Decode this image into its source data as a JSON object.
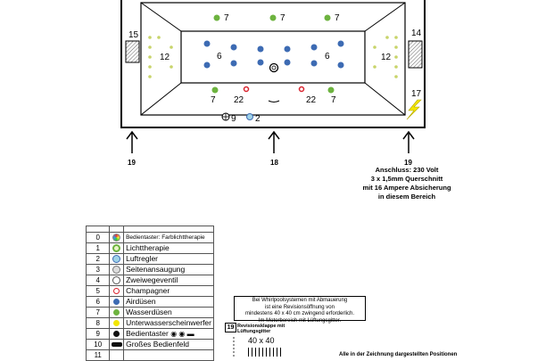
{
  "tub": {
    "labels": {
      "top_left": "7",
      "top_mid": "7",
      "top_right": "7",
      "mid_left": "6",
      "mid_right": "6",
      "side_left": "12",
      "side_right": "12",
      "bottom_left_7": "7",
      "bottom_right_7": "7",
      "bottom_left_22": "22",
      "bottom_right_22": "22",
      "pos_15": "15",
      "pos_14": "14",
      "pos_17": "17",
      "pos_9": "9",
      "pos_2": "2"
    },
    "arrows": {
      "left": "19",
      "middle": "18",
      "right": "19"
    }
  },
  "connection_note": {
    "line1": "Anschluss: 230 Volt",
    "line2": "3 x 1,5mm Querschnitt",
    "line3": "mit 16 Ampere Absicherung",
    "line4": "in diesem Bereich"
  },
  "legend": [
    {
      "num": "0",
      "label": "Bedientaster: Farblichttherapie",
      "icon": "color-therapy-icon"
    },
    {
      "num": "1",
      "label": "Lichttherapie",
      "icon": "light-therapy-icon"
    },
    {
      "num": "2",
      "label": "Luftregler",
      "icon": "air-regulator-icon"
    },
    {
      "num": "3",
      "label": "Seitenansaugung",
      "icon": "side-suction-icon"
    },
    {
      "num": "4",
      "label": "Zweiwegeventil",
      "icon": "two-way-valve-icon"
    },
    {
      "num": "5",
      "label": "Champagner",
      "icon": "champagne-icon"
    },
    {
      "num": "6",
      "label": "Airdüsen",
      "icon": "air-nozzle-icon"
    },
    {
      "num": "7",
      "label": "Wasserdüsen",
      "icon": "water-nozzle-icon"
    },
    {
      "num": "8",
      "label": "Unterwasserscheinwerfer",
      "icon": "underwater-light-icon"
    },
    {
      "num": "9",
      "label": "Bedientaster",
      "icon": "control-button-icon"
    },
    {
      "num": "10",
      "label": "Großes Bedienfeld",
      "icon": "control-panel-icon"
    },
    {
      "num": "11",
      "label": "",
      "icon": ""
    }
  ],
  "colors": {
    "water_nozzle": "#6db33f",
    "air_nozzle": "#3d6bb3",
    "champagne": "#d9232e",
    "side_dot": "#c8d46a"
  },
  "infobox": {
    "line1": "Bei Whirlpoolsystemen mit Abmauerung",
    "line2": "ist eine Revisionsöffnung von",
    "line3": "mindestens 40 x 40 cm zwingend erforderlich.",
    "line4": "Im Motorbereich mit Lüftungsgitter."
  },
  "revision": {
    "num": "19",
    "title": "Revisionsklappe mit Lüftungsgitter",
    "size": "40 x 40"
  },
  "footnote": "Alle in der Zeichnung dargestellten Positionen"
}
